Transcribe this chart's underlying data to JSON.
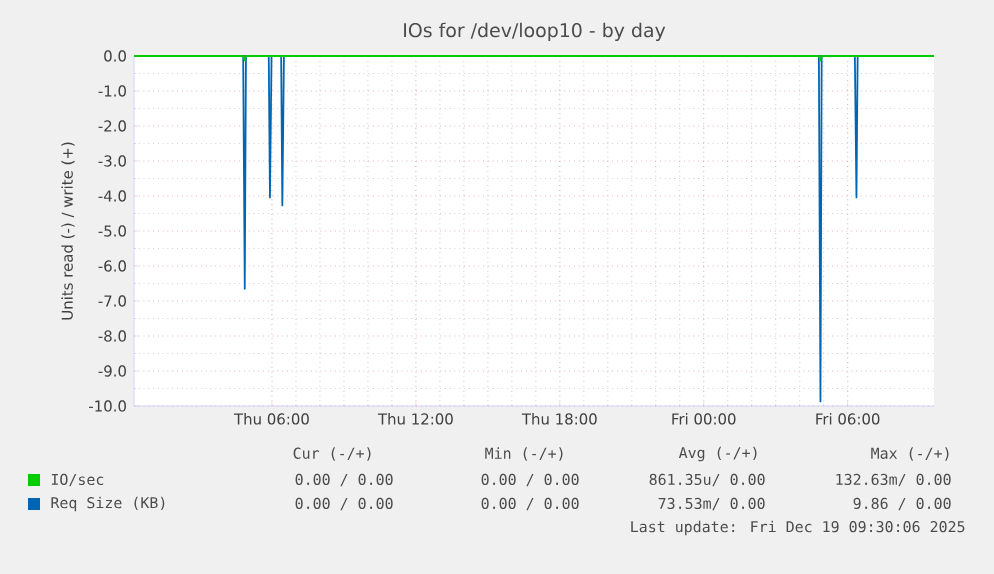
{
  "chart_data": {
    "type": "line",
    "title": "IOs for /dev/loop10 - by day",
    "ylabel": "Units read (-) / write (+)",
    "xlim": [
      "2025-12-18T00:15",
      "2025-12-19T09:36"
    ],
    "ylim": [
      -10,
      0
    ],
    "xticks": [
      {
        "value": "2025-12-18T06:00",
        "label": "Thu 06:00"
      },
      {
        "value": "2025-12-18T12:00",
        "label": "Thu 12:00"
      },
      {
        "value": "2025-12-18T18:00",
        "label": "Thu 18:00"
      },
      {
        "value": "2025-12-19T00:00",
        "label": "Fri 00:00"
      },
      {
        "value": "2025-12-19T06:00",
        "label": "Fri 06:00"
      }
    ],
    "yticks": [
      {
        "value": 0,
        "label": "0.0"
      },
      {
        "value": -1,
        "label": "-1.0"
      },
      {
        "value": -2,
        "label": "-2.0"
      },
      {
        "value": -3,
        "label": "-3.0"
      },
      {
        "value": -4,
        "label": "-4.0"
      },
      {
        "value": -5,
        "label": "-5.0"
      },
      {
        "value": -6,
        "label": "-6.0"
      },
      {
        "value": -7,
        "label": "-7.0"
      },
      {
        "value": -8,
        "label": "-8.0"
      },
      {
        "value": -9,
        "label": "-9.0"
      },
      {
        "value": -10,
        "label": "-10.0"
      }
    ],
    "grid": true,
    "legend": "bottom",
    "series": [
      {
        "name": "IO/sec",
        "color": "#00cc00",
        "x": [
          "2025-12-18T00:15",
          "2025-12-18T04:48",
          "2025-12-18T04:52",
          "2025-12-18T04:55",
          "2025-12-19T04:48",
          "2025-12-19T04:52",
          "2025-12-19T04:55",
          "2025-12-19T09:36"
        ],
        "values": [
          0,
          0,
          -0.13,
          0,
          0,
          -0.13,
          0,
          0
        ]
      },
      {
        "name": "Req Size (KB)",
        "color": "#0066b3",
        "x": [
          "2025-12-18T00:15",
          "2025-12-18T04:48",
          "2025-12-18T04:52",
          "2025-12-18T04:55",
          "2025-12-18T05:52",
          "2025-12-18T05:55",
          "2025-12-18T05:59",
          "2025-12-18T06:23",
          "2025-12-18T06:26",
          "2025-12-18T06:30",
          "2025-12-19T04:48",
          "2025-12-19T04:52",
          "2025-12-19T04:55",
          "2025-12-19T06:18",
          "2025-12-19T06:22",
          "2025-12-19T06:25",
          "2025-12-19T09:36"
        ],
        "values": [
          0,
          0,
          -6.65,
          0,
          0,
          -4.04,
          0,
          0,
          -4.27,
          0,
          0,
          -9.87,
          0,
          0,
          -4.04,
          0,
          0
        ]
      }
    ],
    "annotations": [
      "Cur (-/+)",
      "Min (-/+)",
      "Avg (-/+)",
      "Max (-/+)",
      "0.00 / 0.00",
      "0.00 / 0.00",
      "861.35u/ 0.00",
      "132.63m/ 0.00",
      "0.00 / 0.00",
      "0.00 / 0.00",
      "73.53m/ 0.00",
      "9.86 / 0.00",
      "Last update: Fri Dec 19 09:30:06 2025"
    ]
  }
}
